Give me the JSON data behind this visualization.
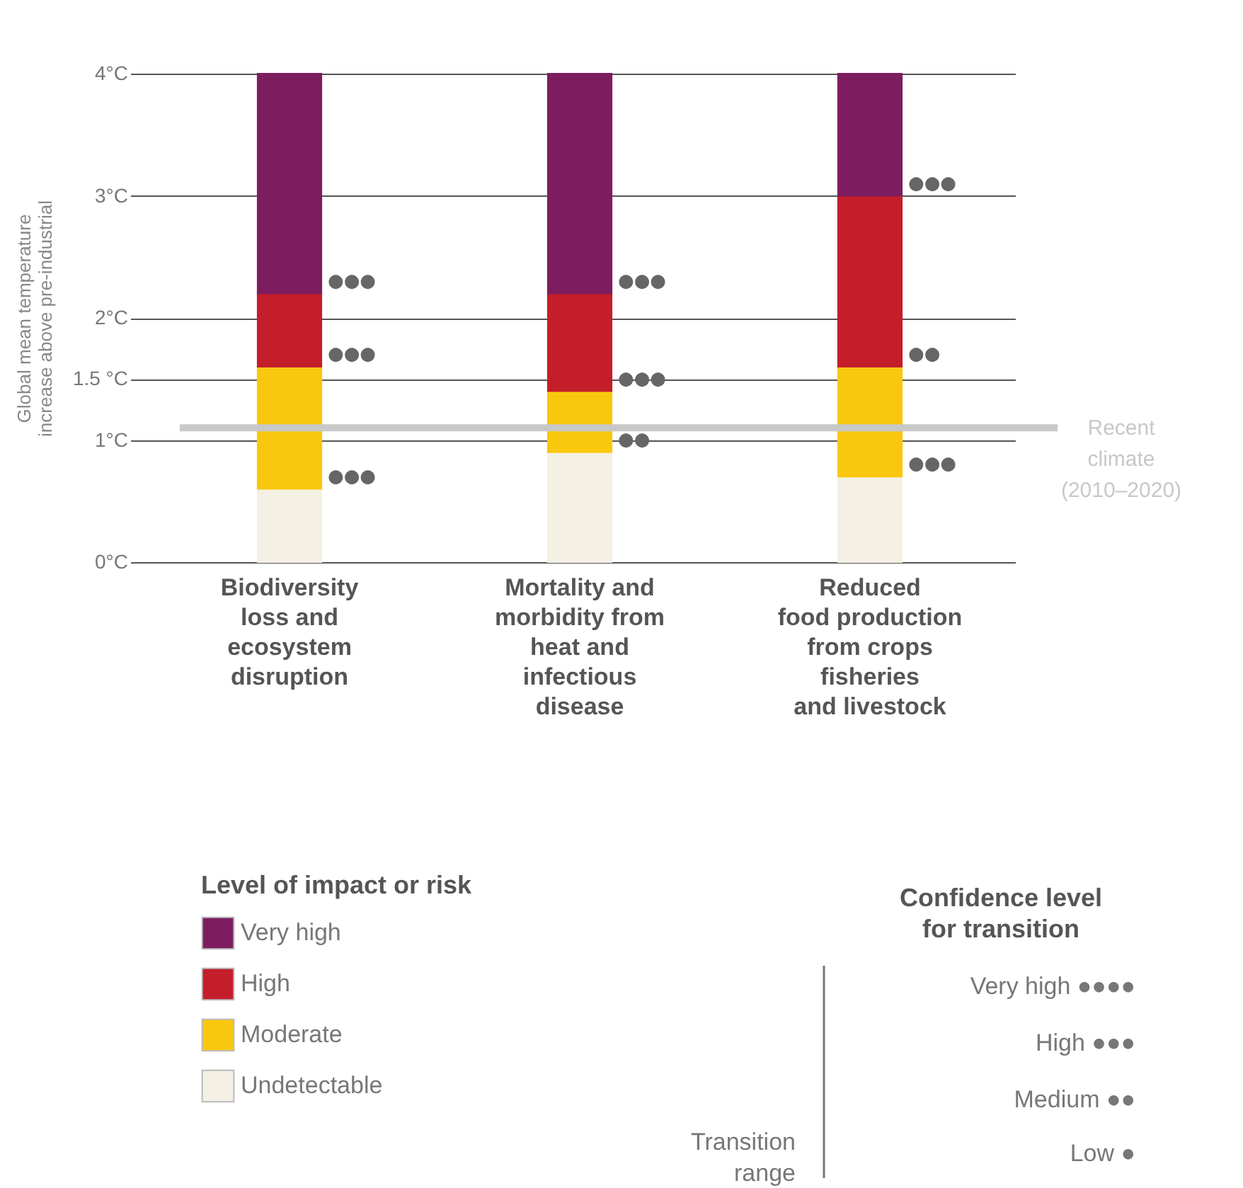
{
  "chart_data": {
    "type": "bar",
    "stacked": true,
    "ylabel": "Global mean temperature\nincrease above pre-industrial",
    "legend_title": "Level of impact or risk",
    "categories": [
      "Biodiversity\nloss and\necosystem\ndisruption",
      "Mortality and\nmorbidity from\nheat and\ninfectious\ndisease",
      "Reduced\nfood production\nfrom crops\nfisheries\nand livestock"
    ],
    "series": [
      {
        "name": "Undetectable",
        "color": "#f4f1e4",
        "values": [
          0.6,
          0.9,
          0.7
        ]
      },
      {
        "name": "Moderate",
        "color": "#f9c80e",
        "values": [
          1.0,
          0.5,
          0.9
        ]
      },
      {
        "name": "High",
        "color": "#c41e2a",
        "values": [
          0.6,
          0.8,
          1.4
        ]
      },
      {
        "name": "Very high",
        "color": "#7d1d5f",
        "values": [
          1.8,
          1.8,
          1.0
        ]
      }
    ],
    "ylim": [
      0,
      4
    ],
    "yticks": [
      {
        "value": 0,
        "label": "0°C"
      },
      {
        "value": 1,
        "label": "1°C"
      },
      {
        "value": 1.5,
        "label": "1.5 °C"
      },
      {
        "value": 2,
        "label": "2°C"
      },
      {
        "value": 3,
        "label": "3°C"
      },
      {
        "value": 4,
        "label": "4°C"
      }
    ],
    "grid": "y",
    "legend": "bottom left",
    "ref_lines": [
      {
        "axis": "y",
        "value": 1.1,
        "label": "Recent climate (2010–2020)",
        "color": "#c8c8c8"
      }
    ],
    "annotations": [
      {
        "text": "●●●",
        "x": "Biodiversity\nloss and\necosystem\ndisruption",
        "y": 0.6
      },
      {
        "text": "●●●",
        "x": "Biodiversity\nloss and\necosystem\ndisruption",
        "y": 1.6
      },
      {
        "text": "●●●",
        "x": "Biodiversity\nloss and\necosystem\ndisruption",
        "y": 2.2
      },
      {
        "text": "●●",
        "x": "Mortality and\nmorbidity from\nheat and\ninfectious\ndisease",
        "y": 0.9
      },
      {
        "text": "●●●",
        "x": "Mortality and\nmorbidity from\nheat and\ninfectious\ndisease",
        "y": 1.4
      },
      {
        "text": "●●●",
        "x": "Mortality and\nmorbidity from\nheat and\ninfectious\ndisease",
        "y": 2.2
      },
      {
        "text": "●●●",
        "x": "Reduced\nfood production\nfrom crops\nfisheries\nand livestock",
        "y": 0.7
      },
      {
        "text": "●●",
        "x": "Reduced\nfood production\nfrom crops\nfisheries\nand livestock",
        "y": 1.6
      },
      {
        "text": "●●●",
        "x": "Reduced\nfood production\nfrom crops\nfisheries\nand livestock",
        "y": 3.0
      },
      "Confidence level\nfor transition",
      "Very high ●●●●",
      "High ●●●",
      "Medium ●●",
      "Low ●",
      "Transition\nrange"
    ]
  }
}
